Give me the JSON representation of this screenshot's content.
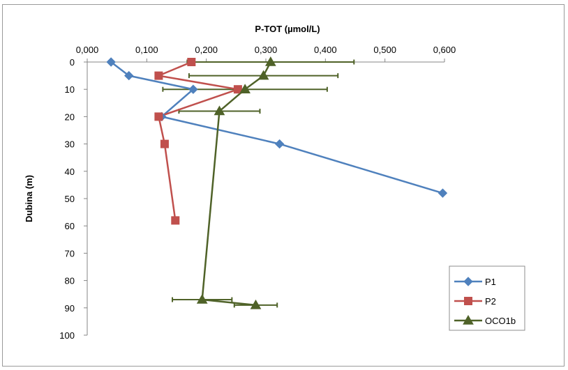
{
  "chart_data": {
    "type": "line",
    "title": "",
    "xlabel": "P-TOT (µmol/L)",
    "ylabel": "Dubina (m)",
    "xlim": [
      0,
      0.6
    ],
    "ylim": [
      0,
      100
    ],
    "y_inverted": true,
    "x_axis_position": "top",
    "x_ticks": [
      "0,000",
      "0,100",
      "0,200",
      "0,300",
      "0,400",
      "0,500",
      "0,600"
    ],
    "y_ticks": [
      "0",
      "10",
      "20",
      "30",
      "40",
      "50",
      "60",
      "70",
      "80",
      "90",
      "100"
    ],
    "grid": false,
    "legend_position": "right",
    "series": [
      {
        "name": "P1",
        "color": "#4f81bd",
        "marker": "diamond",
        "points": [
          {
            "x": 0.04,
            "y": 0
          },
          {
            "x": 0.07,
            "y": 5
          },
          {
            "x": 0.178,
            "y": 10
          },
          {
            "x": 0.125,
            "y": 20
          },
          {
            "x": 0.323,
            "y": 30
          },
          {
            "x": 0.597,
            "y": 48
          }
        ]
      },
      {
        "name": "P2",
        "color": "#c0504d",
        "marker": "square",
        "points": [
          {
            "x": 0.175,
            "y": 0
          },
          {
            "x": 0.12,
            "y": 5
          },
          {
            "x": 0.253,
            "y": 10
          },
          {
            "x": 0.12,
            "y": 20
          },
          {
            "x": 0.13,
            "y": 30
          },
          {
            "x": 0.148,
            "y": 58
          }
        ]
      },
      {
        "name": "OCO1b",
        "color": "#4f6228",
        "marker": "triangle",
        "points": [
          {
            "x": 0.308,
            "y": 0,
            "err": 0.14
          },
          {
            "x": 0.296,
            "y": 5,
            "err": 0.125
          },
          {
            "x": 0.265,
            "y": 10,
            "err": 0.138
          },
          {
            "x": 0.222,
            "y": 18,
            "err": 0.068
          },
          {
            "x": 0.193,
            "y": 87,
            "err": 0.05
          },
          {
            "x": 0.283,
            "y": 89,
            "err": 0.036
          }
        ]
      }
    ]
  }
}
